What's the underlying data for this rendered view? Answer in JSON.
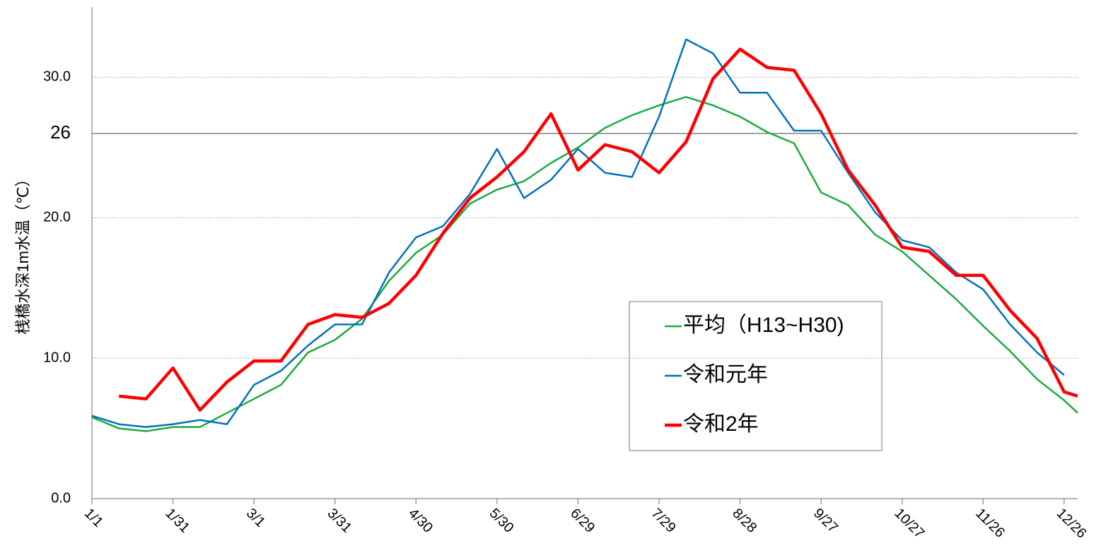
{
  "chart_data": {
    "type": "line",
    "y_label": "桟橋水深1m水温（℃）",
    "x": [
      1,
      11,
      21,
      31,
      41,
      51,
      61,
      71,
      81,
      91,
      101,
      111,
      121,
      131,
      141,
      151,
      161,
      171,
      181,
      191,
      201,
      211,
      221,
      231,
      241,
      251,
      261,
      271,
      281,
      291,
      301,
      311,
      321,
      331,
      341,
      351,
      361,
      366
    ],
    "xlim": [
      1,
      366
    ],
    "xticks": [
      {
        "value": 1,
        "label": "1/1"
      },
      {
        "value": 31,
        "label": "1/31"
      },
      {
        "value": 61,
        "label": "3/1"
      },
      {
        "value": 91,
        "label": "3/31"
      },
      {
        "value": 121,
        "label": "4/30"
      },
      {
        "value": 151,
        "label": "5/30"
      },
      {
        "value": 181,
        "label": "6/29"
      },
      {
        "value": 211,
        "label": "7/29"
      },
      {
        "value": 241,
        "label": "8/28"
      },
      {
        "value": 271,
        "label": "9/27"
      },
      {
        "value": 301,
        "label": "10/27"
      },
      {
        "value": 331,
        "label": "11/26"
      },
      {
        "value": 361,
        "label": "12/26"
      }
    ],
    "ylim": [
      0,
      35
    ],
    "yticks": [
      {
        "value": 0,
        "label": "0.0"
      },
      {
        "value": 10,
        "label": "10.0"
      },
      {
        "value": 20,
        "label": "20.0"
      },
      {
        "value": 30,
        "label": "30.0"
      }
    ],
    "grid": true,
    "reference_line": {
      "value": 26,
      "label": "26"
    },
    "series": [
      {
        "name": "平均（H13~H30)",
        "color": "#1aab40",
        "width": 2.5,
        "values": [
          5.8,
          5.0,
          4.8,
          5.1,
          5.1,
          6.1,
          7.1,
          8.1,
          10.4,
          11.3,
          12.8,
          15.5,
          17.5,
          18.8,
          21.0,
          22.0,
          22.6,
          23.9,
          25.0,
          26.4,
          27.3,
          28.0,
          28.6,
          28.0,
          27.2,
          26.1,
          25.3,
          21.8,
          20.9,
          18.8,
          17.6,
          15.9,
          14.2,
          12.3,
          10.5,
          8.5,
          7.0,
          6.1
        ]
      },
      {
        "name": "令和元年",
        "color": "#0070c0",
        "width": 2.5,
        "values": [
          5.9,
          5.3,
          5.1,
          5.3,
          5.6,
          5.3,
          8.1,
          9.1,
          10.9,
          12.4,
          12.4,
          16.1,
          18.6,
          19.4,
          21.7,
          24.9,
          21.4,
          22.7,
          24.9,
          23.2,
          22.9,
          27.2,
          32.7,
          31.7,
          28.9,
          28.9,
          26.2,
          26.2,
          23.2,
          20.4,
          18.4,
          17.9,
          16.1,
          14.9,
          12.4,
          10.4,
          8.8,
          null
        ]
      },
      {
        "name": "令和2年",
        "color": "#ff0000",
        "width": 4.5,
        "values": [
          null,
          7.3,
          7.1,
          9.3,
          6.3,
          8.3,
          9.8,
          9.8,
          12.4,
          13.1,
          12.9,
          13.9,
          15.9,
          18.9,
          21.4,
          22.9,
          24.7,
          27.4,
          23.4,
          25.2,
          24.7,
          23.2,
          25.4,
          29.9,
          32.0,
          30.7,
          30.5,
          27.4,
          23.4,
          20.9,
          17.9,
          17.6,
          15.9,
          15.9,
          13.4,
          11.4,
          7.6,
          7.3
        ]
      }
    ]
  }
}
